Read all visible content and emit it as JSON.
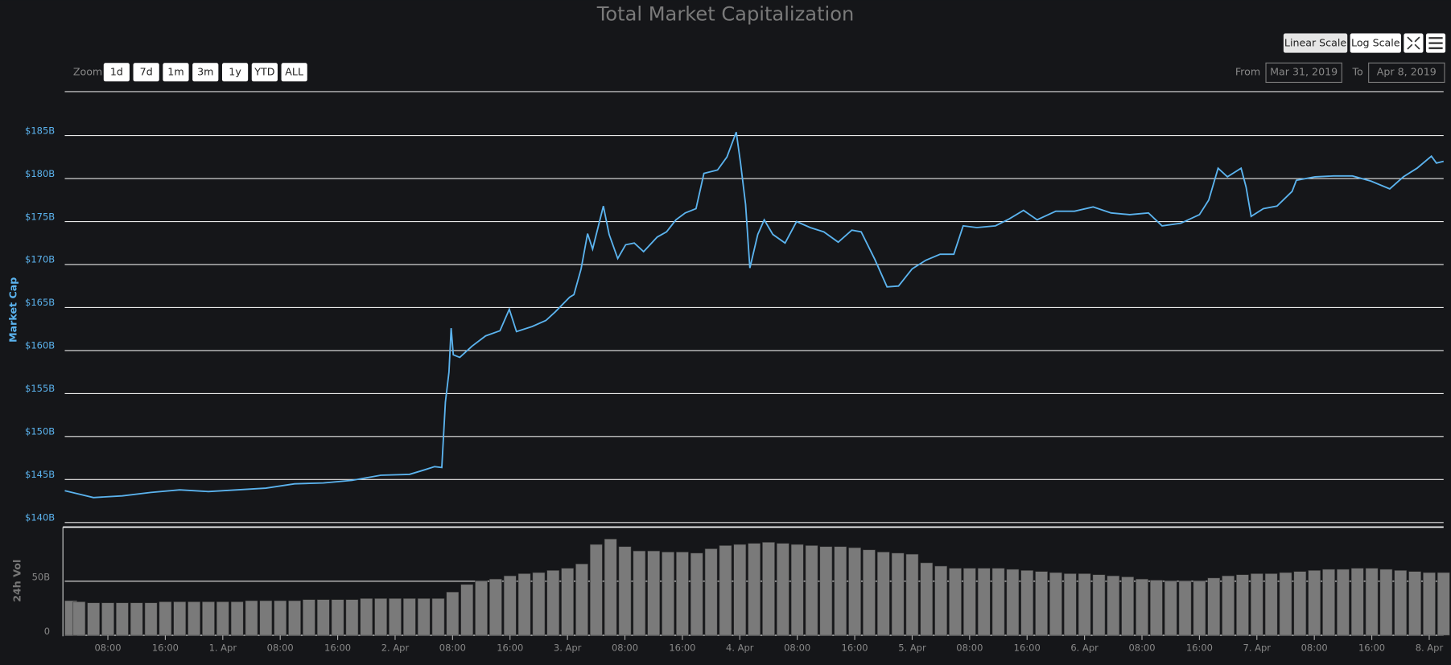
{
  "ui": {
    "zoom_label": "Zoom",
    "zoom_buttons": [
      "1d",
      "7d",
      "1m",
      "3m",
      "1y",
      "YTD",
      "ALL"
    ],
    "from_label": "From",
    "from_value": "Mar 31, 2019",
    "to_label": "To",
    "to_value": "Apr 8, 2019",
    "scale_buttons": [
      "Linear Scale",
      "Log Scale"
    ]
  },
  "chart_data": [
    {
      "type": "line",
      "title": "Total Market Capitalization",
      "y_label": "Market Cap",
      "color": "#5bb3ee",
      "xlim": [
        2,
        194
      ],
      "ylim": [
        140,
        190
      ],
      "yticks": [
        {
          "value": 140,
          "label": "$140B"
        },
        {
          "value": 145,
          "label": "$145B"
        },
        {
          "value": 150,
          "label": "$150B"
        },
        {
          "value": 155,
          "label": "$155B"
        },
        {
          "value": 160,
          "label": "$160B"
        },
        {
          "value": 165,
          "label": "$165B"
        },
        {
          "value": 170,
          "label": "$170B"
        },
        {
          "value": 175,
          "label": "$175B"
        },
        {
          "value": 180,
          "label": "$180B"
        },
        {
          "value": 185,
          "label": "$185B"
        }
      ],
      "grid": true,
      "x": [
        2,
        4,
        6,
        10,
        14,
        18,
        22,
        26,
        30,
        34,
        38,
        42,
        46,
        50,
        52,
        53.5,
        54.5,
        55,
        55.5,
        55.8,
        56.1,
        57,
        58.7,
        60.6,
        62.6,
        63.9,
        64.9,
        67.1,
        69,
        70.3,
        72.3,
        72.9,
        73.9,
        74.8,
        75.5,
        77,
        77.8,
        79,
        80.1,
        81.3,
        82.6,
        84.5,
        85.8,
        87.1,
        88.4,
        89.9,
        91,
        92.9,
        94.2,
        95.5,
        96.1,
        96.8,
        97.4,
        98.5,
        99.4,
        100.6,
        102.3,
        103.9,
        105.8,
        107.7,
        109.7,
        111.6,
        112.9,
        114.8,
        116.5,
        118.1,
        120,
        121.9,
        123.9,
        125.8,
        127.1,
        129,
        131.6,
        133.5,
        135.5,
        137.4,
        140,
        142.6,
        145.2,
        147.7,
        150.3,
        152.9,
        154.8,
        157.4,
        160,
        161.3,
        162.6,
        163.9,
        165.8,
        166.5,
        167.2,
        168.9,
        170.8,
        172.9,
        173.5,
        176.1,
        178.7,
        181.3,
        183.9,
        186.5,
        188.4,
        190.3,
        192.3,
        193,
        194
      ],
      "values": [
        143.7,
        143.3,
        142.9,
        143.1,
        143.5,
        143.8,
        143.6,
        143.8,
        144.0,
        144.5,
        144.6,
        144.9,
        145.5,
        145.6,
        146.1,
        146.5,
        146.4,
        154,
        157.5,
        162.6,
        159.5,
        159.2,
        160.5,
        161.7,
        162.3,
        164.8,
        162.2,
        162.8,
        163.5,
        164.5,
        166.2,
        166.5,
        169.5,
        173.6,
        171.8,
        176.8,
        173.5,
        170.7,
        172.3,
        172.5,
        171.5,
        173.2,
        173.8,
        175.2,
        176,
        176.5,
        180.6,
        181,
        182.5,
        185.4,
        181.8,
        177,
        169.6,
        173.5,
        175.2,
        173.5,
        172.5,
        175,
        174.3,
        173.8,
        172.6,
        174,
        173.8,
        170.6,
        167.4,
        167.5,
        169.5,
        170.5,
        171.2,
        171.2,
        174.5,
        174.3,
        174.5,
        175.3,
        176.3,
        175.2,
        176.2,
        176.2,
        176.7,
        176,
        175.8,
        176,
        174.5,
        174.8,
        175.8,
        177.5,
        181.2,
        180.2,
        181.2,
        179,
        175.6,
        176.5,
        176.8,
        178.5,
        179.8,
        180.2,
        180.3,
        180.3,
        179.7,
        178.8,
        180.2,
        181.2,
        182.6,
        181.8,
        182
      ]
    },
    {
      "type": "bar",
      "y_label": "24h Vol",
      "color": "#7a7a7a",
      "xlim": [
        2,
        194
      ],
      "ylim": [
        0,
        100
      ],
      "yticks": [
        0,
        {
          "value": 50,
          "label": "50B"
        }
      ],
      "grid": true,
      "xticks": [
        {
          "value": 8,
          "label": "08:00"
        },
        {
          "value": 16,
          "label": "16:00"
        },
        {
          "value": 24,
          "label": "1. Apr"
        },
        {
          "value": 32,
          "label": "08:00"
        },
        {
          "value": 40,
          "label": "16:00"
        },
        {
          "value": 48,
          "label": "2. Apr"
        },
        {
          "value": 56,
          "label": "08:00"
        },
        {
          "value": 64,
          "label": "16:00"
        },
        {
          "value": 72,
          "label": "3. Apr"
        },
        {
          "value": 80,
          "label": "08:00"
        },
        {
          "value": 88,
          "label": "16:00"
        },
        {
          "value": 96,
          "label": "4. Apr"
        },
        {
          "value": 104,
          "label": "08:00"
        },
        {
          "value": 112,
          "label": "16:00"
        },
        {
          "value": 120,
          "label": "5. Apr"
        },
        {
          "value": 128,
          "label": "08:00"
        },
        {
          "value": 136,
          "label": "16:00"
        },
        {
          "value": 144,
          "label": "6. Apr"
        },
        {
          "value": 152,
          "label": "08:00"
        },
        {
          "value": 160,
          "label": "16:00"
        },
        {
          "value": 168,
          "label": "7. Apr"
        },
        {
          "value": 176,
          "label": "08:00"
        },
        {
          "value": 184,
          "label": "16:00"
        },
        {
          "value": 192,
          "label": "8. Apr"
        }
      ],
      "x": [
        2,
        4,
        6,
        8,
        10,
        12,
        14,
        16,
        18,
        20,
        22,
        24,
        26,
        28,
        30,
        32,
        34,
        36,
        38,
        40,
        42,
        44,
        46,
        48,
        50,
        52,
        54,
        56,
        58,
        60,
        62,
        64,
        66,
        68,
        70,
        72,
        74,
        76,
        78,
        80,
        82,
        84,
        86,
        88,
        90,
        92,
        94,
        96,
        98,
        100,
        102,
        104,
        106,
        108,
        110,
        112,
        114,
        116,
        118,
        120,
        122,
        124,
        126,
        128,
        130,
        132,
        134,
        136,
        138,
        140,
        142,
        144,
        146,
        148,
        150,
        152,
        154,
        156,
        158,
        160,
        162,
        164,
        166,
        168,
        170,
        172,
        174,
        176,
        178,
        180,
        182,
        184,
        186,
        188,
        190,
        192,
        194
      ],
      "values": [
        32,
        31,
        30,
        30,
        30,
        30,
        30,
        31,
        31,
        31,
        31,
        31,
        31,
        32,
        32,
        32,
        32,
        33,
        33,
        33,
        33,
        34,
        34,
        34,
        34,
        34,
        34,
        40,
        47,
        50,
        52,
        55,
        57,
        58,
        60,
        62,
        66,
        84,
        89,
        82,
        78,
        78,
        77,
        77,
        76,
        80,
        83,
        84,
        85,
        86,
        85,
        84,
        83,
        82,
        82,
        81,
        79,
        77,
        76,
        75,
        67,
        64,
        62,
        62,
        62,
        62,
        61,
        60,
        59,
        58,
        57,
        57,
        56,
        55,
        54,
        52,
        51,
        50,
        50,
        50,
        53,
        55,
        56,
        57,
        57,
        58,
        59,
        60,
        61,
        61,
        62,
        62,
        61,
        60,
        59,
        58,
        58
      ]
    }
  ]
}
